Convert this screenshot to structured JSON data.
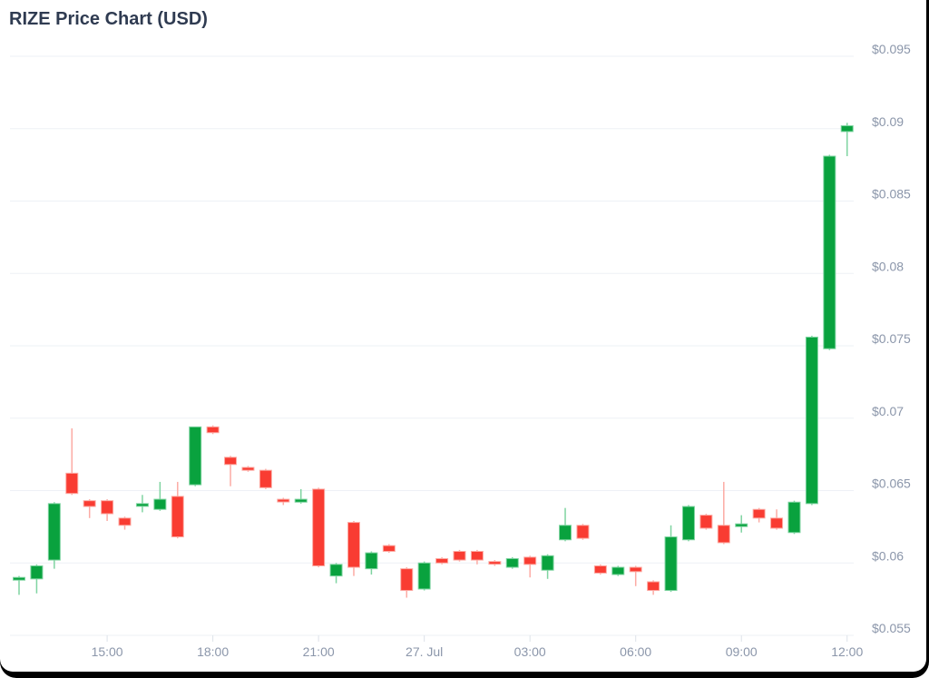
{
  "page": {
    "title": "RIZE Price Chart (USD)"
  },
  "chart": {
    "colors": {
      "up": "#09a23e",
      "up_wick": "#7fd4a1",
      "down": "#f93c32",
      "down_wick": "#fcaba4",
      "grid": "#eef1f6",
      "axis_tick": "#dde2e9",
      "label": "#8b96aa",
      "title": "#2f3b51",
      "background": "#ffffff",
      "frame": "#000000"
    },
    "y_axis": {
      "labels": [
        "$0.095",
        "$0.09",
        "$0.085",
        "$0.08",
        "$0.075",
        "$0.07",
        "$0.065",
        "$0.06",
        "$0.055"
      ],
      "values": [
        0.095,
        0.09,
        0.085,
        0.08,
        0.075,
        0.07,
        0.065,
        0.06,
        0.055
      ],
      "max": 0.095,
      "min": 0.055
    },
    "x_axis": {
      "tick_labels": [
        "15:00",
        "18:00",
        "21:00",
        "27. Jul",
        "03:00",
        "06:00",
        "09:00",
        "12:00"
      ],
      "tick_indices": [
        5,
        11,
        17,
        23,
        29,
        35,
        41,
        47
      ]
    }
  },
  "chart_data": {
    "type": "candlestick",
    "title": "RIZE Price Chart (USD)",
    "unit": "USD",
    "interval_minutes": 30,
    "x_range": [
      "26 Jul 12:30",
      "27. Jul 12:00"
    ],
    "ylim": [
      0.055,
      0.095
    ],
    "grid": true,
    "legend": false,
    "columns": [
      "time",
      "open",
      "high",
      "low",
      "close"
    ],
    "candles": [
      [
        "12:30",
        0.0589,
        0.0591,
        0.0578,
        0.059
      ],
      [
        "13:00",
        0.0589,
        0.0599,
        0.0579,
        0.0598
      ],
      [
        "13:30",
        0.0602,
        0.0642,
        0.0596,
        0.0641
      ],
      [
        "14:00",
        0.0662,
        0.0693,
        0.0647,
        0.0648
      ],
      [
        "14:30",
        0.0643,
        0.0644,
        0.0631,
        0.0639
      ],
      [
        "15:00",
        0.0643,
        0.0644,
        0.0629,
        0.0634
      ],
      [
        "15:30",
        0.0631,
        0.0632,
        0.0623,
        0.0626
      ],
      [
        "16:00",
        0.0641,
        0.0647,
        0.0635,
        0.0641
      ],
      [
        "16:30",
        0.0637,
        0.0656,
        0.0636,
        0.0644
      ],
      [
        "17:00",
        0.0646,
        0.0656,
        0.0617,
        0.0618
      ],
      [
        "17:30",
        0.0654,
        0.0694,
        0.0653,
        0.0694
      ],
      [
        "18:00",
        0.0694,
        0.0695,
        0.0689,
        0.069
      ],
      [
        "18:30",
        0.0673,
        0.0674,
        0.0653,
        0.0668
      ],
      [
        "19:00",
        0.0666,
        0.0667,
        0.0663,
        0.0664
      ],
      [
        "19:30",
        0.0664,
        0.0665,
        0.0651,
        0.0652
      ],
      [
        "20:00",
        0.0644,
        0.0645,
        0.064,
        0.0643
      ],
      [
        "20:30",
        0.0642,
        0.0651,
        0.0641,
        0.0644
      ],
      [
        "21:00",
        0.0651,
        0.0652,
        0.0597,
        0.0598
      ],
      [
        "21:30",
        0.0591,
        0.06,
        0.0586,
        0.0599
      ],
      [
        "22:00",
        0.0628,
        0.0629,
        0.0591,
        0.0597
      ],
      [
        "22:30",
        0.0596,
        0.0608,
        0.0592,
        0.0607
      ],
      [
        "23:00",
        0.0612,
        0.0613,
        0.0607,
        0.0608
      ],
      [
        "23:30",
        0.0596,
        0.0597,
        0.0576,
        0.0581
      ],
      [
        "00:00",
        0.0582,
        0.0601,
        0.0581,
        0.06
      ],
      [
        "00:30",
        0.0603,
        0.0604,
        0.0599,
        0.06
      ],
      [
        "01:00",
        0.0608,
        0.0609,
        0.0601,
        0.0602
      ],
      [
        "01:30",
        0.0608,
        0.0609,
        0.0599,
        0.0602
      ],
      [
        "02:00",
        0.0601,
        0.0602,
        0.0598,
        0.06
      ],
      [
        "02:30",
        0.0597,
        0.0604,
        0.0596,
        0.0603
      ],
      [
        "03:00",
        0.0604,
        0.0605,
        0.059,
        0.0599
      ],
      [
        "03:30",
        0.0595,
        0.0606,
        0.0589,
        0.0605
      ],
      [
        "04:00",
        0.0616,
        0.0638,
        0.0615,
        0.0626
      ],
      [
        "04:30",
        0.0626,
        0.0627,
        0.0616,
        0.0617
      ],
      [
        "05:00",
        0.0598,
        0.0599,
        0.0592,
        0.0593
      ],
      [
        "05:30",
        0.0592,
        0.0598,
        0.0591,
        0.0597
      ],
      [
        "06:00",
        0.0597,
        0.0598,
        0.0584,
        0.0594
      ],
      [
        "06:30",
        0.0587,
        0.0588,
        0.0578,
        0.0581
      ],
      [
        "07:00",
        0.0581,
        0.0626,
        0.058,
        0.0618
      ],
      [
        "07:30",
        0.0616,
        0.064,
        0.0615,
        0.0639
      ],
      [
        "08:00",
        0.0633,
        0.0634,
        0.0623,
        0.0624
      ],
      [
        "08:30",
        0.0626,
        0.0656,
        0.0613,
        0.0614
      ],
      [
        "09:00",
        0.0626,
        0.0633,
        0.0621,
        0.0627
      ],
      [
        "09:30",
        0.0637,
        0.0638,
        0.0628,
        0.0631
      ],
      [
        "10:00",
        0.0631,
        0.0637,
        0.0623,
        0.0624
      ],
      [
        "10:30",
        0.0621,
        0.0643,
        0.062,
        0.0642
      ],
      [
        "11:00",
        0.0641,
        0.0757,
        0.064,
        0.0756
      ],
      [
        "11:30",
        0.0748,
        0.0882,
        0.0747,
        0.0881
      ],
      [
        "12:00",
        0.0898,
        0.0904,
        0.0881,
        0.0902
      ]
    ]
  }
}
